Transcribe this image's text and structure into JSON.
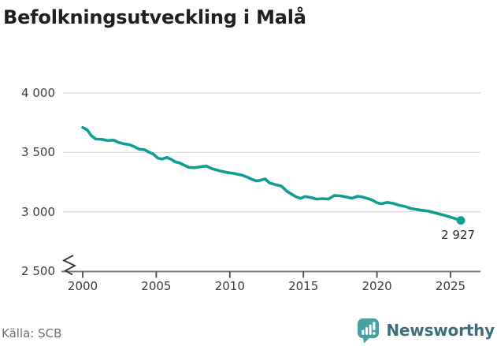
{
  "title": "Befolkningsutveckling i Malå",
  "footer": {
    "source": "Källa: SCB",
    "logo_text": "Newsworthy"
  },
  "colors": {
    "line": "#0f9e90",
    "grid": "#dcdcdc",
    "axis": "#7c7c7c",
    "tick": "#4a4a4a",
    "break_mark": "#2f2f2f",
    "title_text": "#1f1f1f",
    "tick_text": "#3d3d3d",
    "end_label_text": "#2c2c2c",
    "source_text": "#6e6e6e",
    "logo_icon": "#49a0a0",
    "logo_text": "#3e6e7e"
  },
  "chart_data": {
    "type": "line",
    "title": "Befolkningsutveckling i Malå",
    "xlabel": "",
    "ylabel": "",
    "grid": "horizontal",
    "legend": "none",
    "axis_break_at_bottom": true,
    "x_ticks": [
      2000,
      2005,
      2010,
      2015,
      2020,
      2025
    ],
    "x_tick_labels": [
      "2000",
      "2005",
      "2010",
      "2015",
      "2020",
      "2025"
    ],
    "y_ticks": [
      4000,
      3500,
      3000,
      2500
    ],
    "y_tick_labels": [
      "4 000",
      "3 500",
      "3 000",
      "2 500"
    ],
    "xlim": [
      1998.5,
      2027
    ],
    "ylim": [
      2500,
      4000
    ],
    "last_point": {
      "x": 2025.7,
      "y": 2927,
      "label": "2 927"
    },
    "series": [
      {
        "name": "Befolkningsutveckling i Malå",
        "points": [
          [
            2000.0,
            3710
          ],
          [
            2000.3,
            3690
          ],
          [
            2000.6,
            3640
          ],
          [
            2000.9,
            3612
          ],
          [
            2001.3,
            3610
          ],
          [
            2001.7,
            3600
          ],
          [
            2002.1,
            3603
          ],
          [
            2002.4,
            3585
          ],
          [
            2002.8,
            3572
          ],
          [
            2003.2,
            3565
          ],
          [
            2003.5,
            3548
          ],
          [
            2003.8,
            3528
          ],
          [
            2004.2,
            3522
          ],
          [
            2004.5,
            3502
          ],
          [
            2004.8,
            3486
          ],
          [
            2005.1,
            3452
          ],
          [
            2005.4,
            3444
          ],
          [
            2005.7,
            3457
          ],
          [
            2006.0,
            3442
          ],
          [
            2006.3,
            3420
          ],
          [
            2006.6,
            3410
          ],
          [
            2006.9,
            3392
          ],
          [
            2007.2,
            3374
          ],
          [
            2007.6,
            3371
          ],
          [
            2008.0,
            3379
          ],
          [
            2008.4,
            3385
          ],
          [
            2008.8,
            3362
          ],
          [
            2009.3,
            3345
          ],
          [
            2009.8,
            3332
          ],
          [
            2010.3,
            3322
          ],
          [
            2010.8,
            3309
          ],
          [
            2011.2,
            3291
          ],
          [
            2011.5,
            3273
          ],
          [
            2011.8,
            3260
          ],
          [
            2012.1,
            3266
          ],
          [
            2012.4,
            3277
          ],
          [
            2012.7,
            3243
          ],
          [
            2013.1,
            3228
          ],
          [
            2013.5,
            3216
          ],
          [
            2013.9,
            3170
          ],
          [
            2014.2,
            3148
          ],
          [
            2014.5,
            3126
          ],
          [
            2014.8,
            3113
          ],
          [
            2015.1,
            3128
          ],
          [
            2015.5,
            3120
          ],
          [
            2015.9,
            3107
          ],
          [
            2016.3,
            3111
          ],
          [
            2016.7,
            3107
          ],
          [
            2017.1,
            3137
          ],
          [
            2017.5,
            3134
          ],
          [
            2017.9,
            3125
          ],
          [
            2018.3,
            3114
          ],
          [
            2018.7,
            3131
          ],
          [
            2019.0,
            3125
          ],
          [
            2019.4,
            3111
          ],
          [
            2019.7,
            3097
          ],
          [
            2020.0,
            3076
          ],
          [
            2020.3,
            3067
          ],
          [
            2020.7,
            3079
          ],
          [
            2021.1,
            3071
          ],
          [
            2021.5,
            3055
          ],
          [
            2021.9,
            3045
          ],
          [
            2022.3,
            3028
          ],
          [
            2022.7,
            3019
          ],
          [
            2023.1,
            3012
          ],
          [
            2023.5,
            3005
          ],
          [
            2023.9,
            2992
          ],
          [
            2024.3,
            2979
          ],
          [
            2024.7,
            2966
          ],
          [
            2025.1,
            2951
          ],
          [
            2025.4,
            2939
          ],
          [
            2025.7,
            2927
          ]
        ]
      }
    ]
  }
}
